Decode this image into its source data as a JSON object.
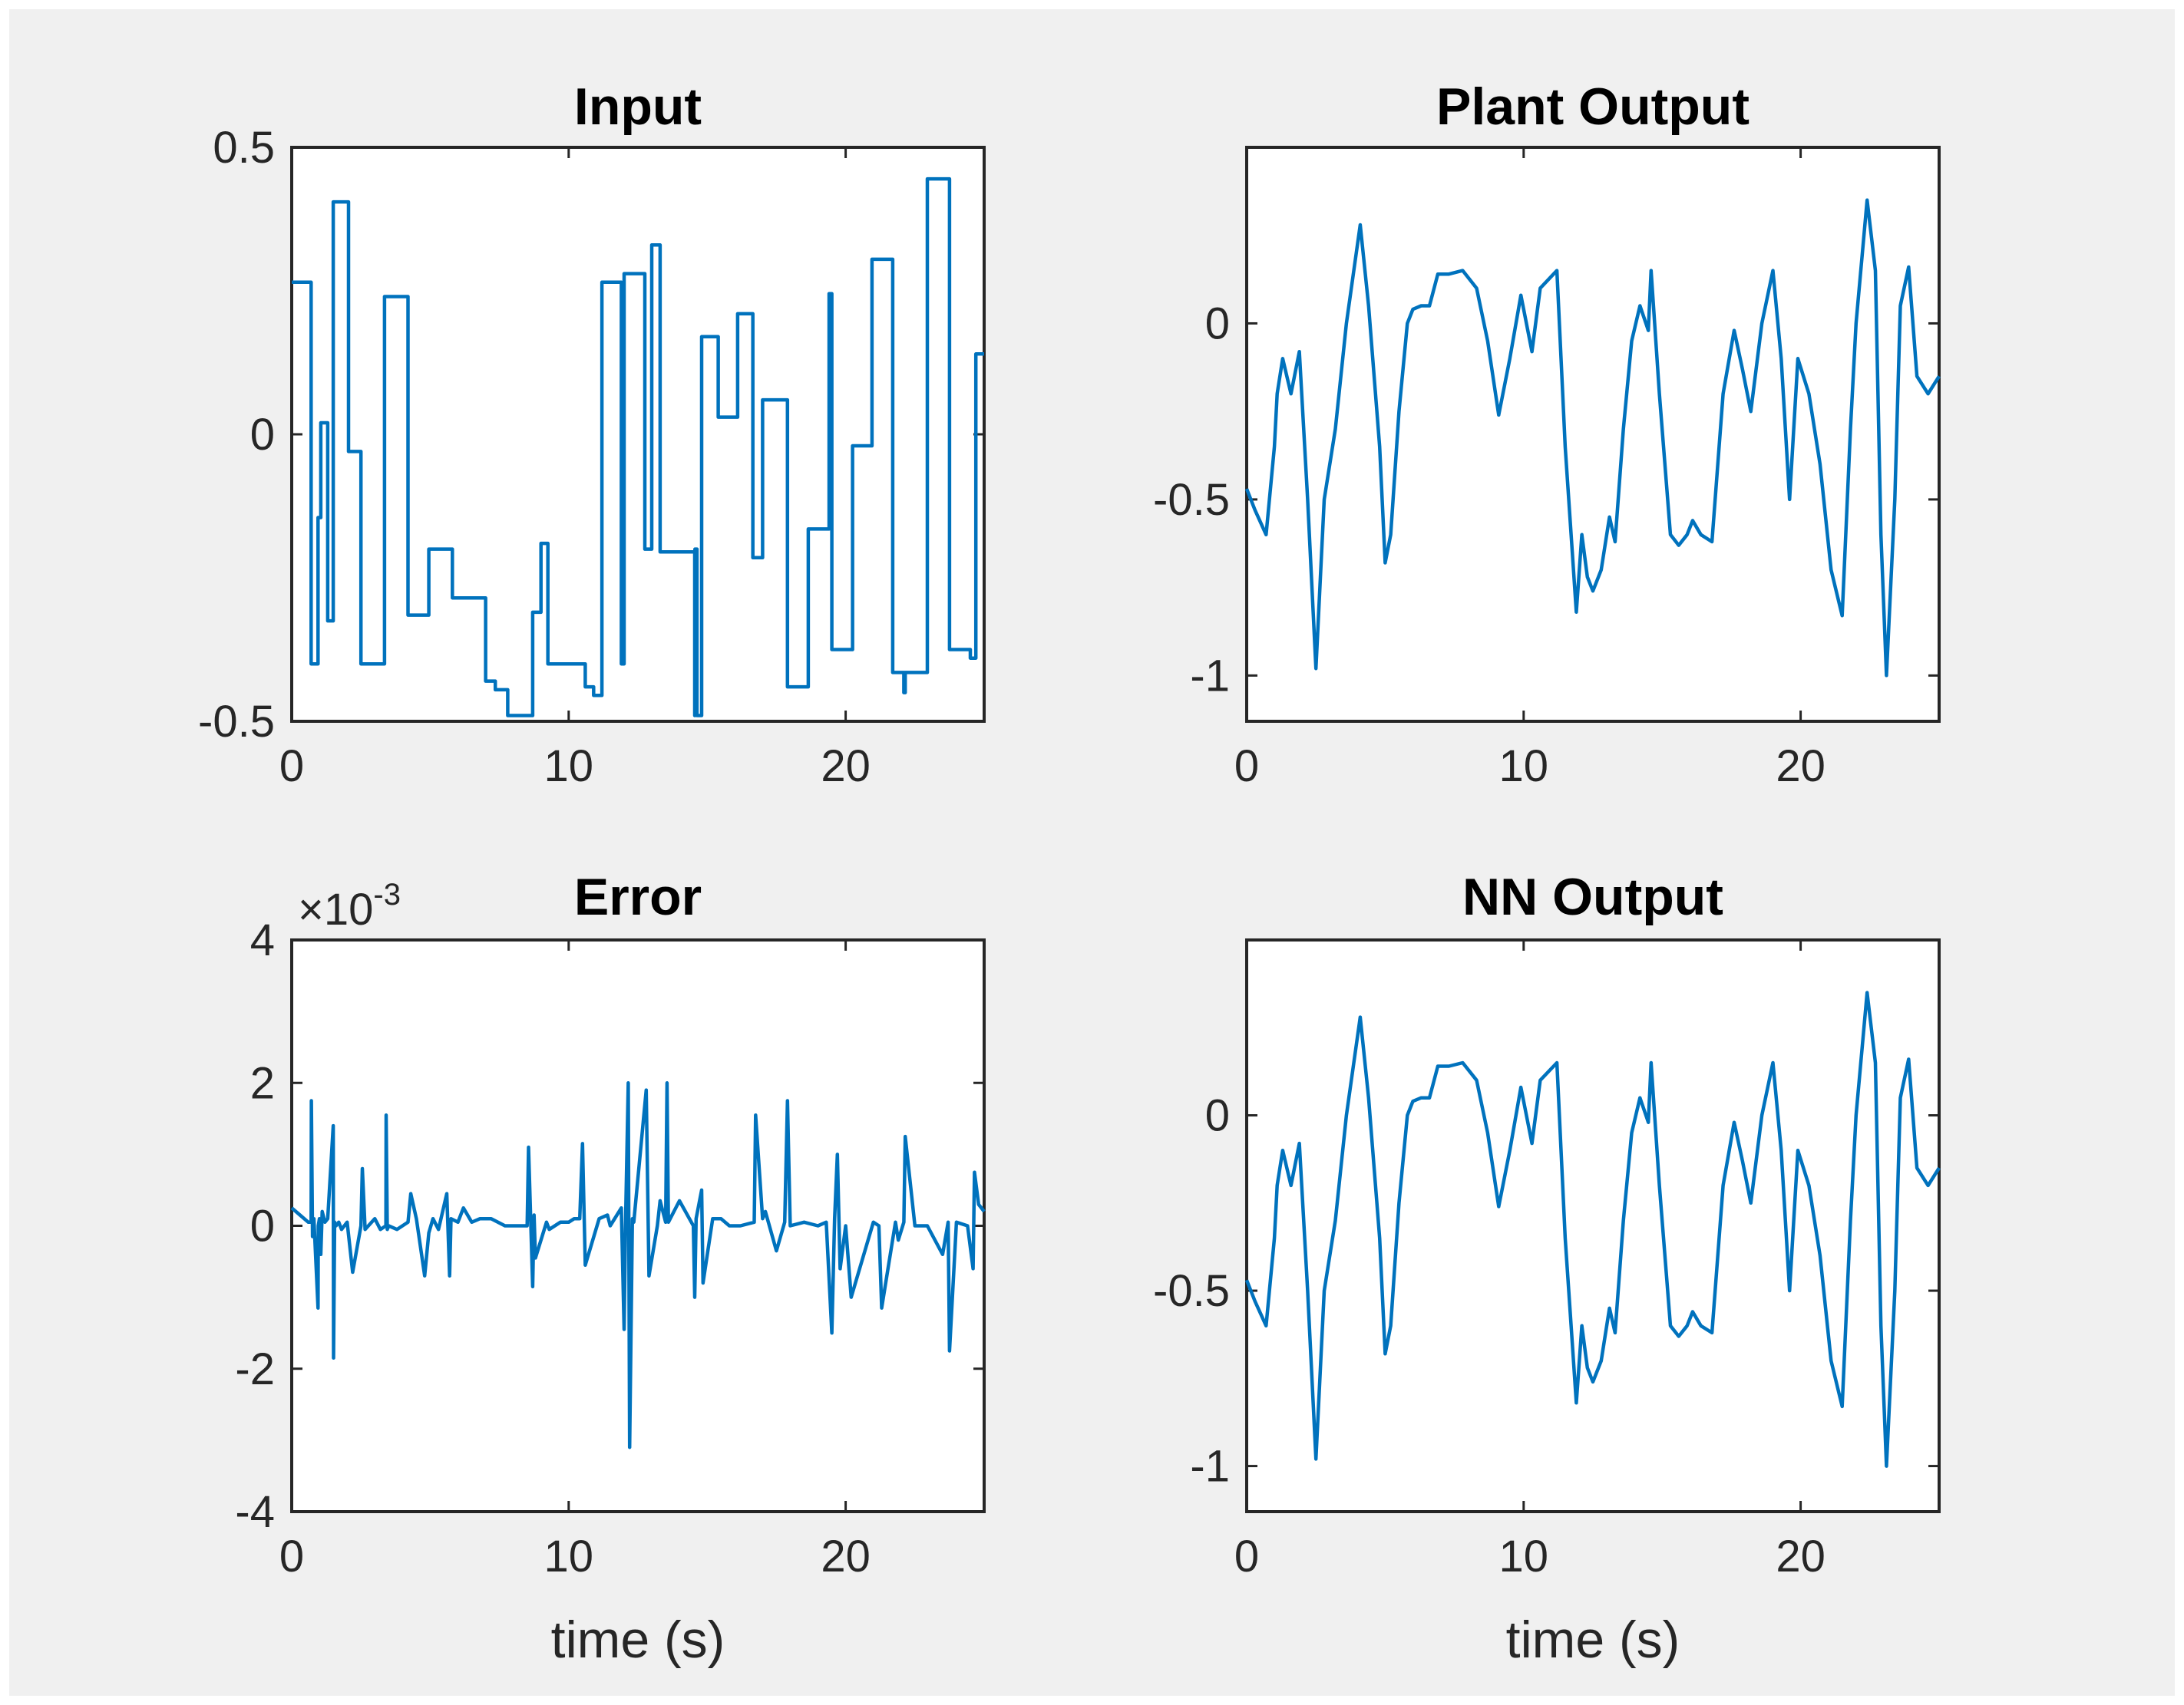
{
  "figure": {
    "background": "#f0f0f0",
    "axes_color": "#262626",
    "line_color": "#0072BD"
  },
  "chart_data": [
    {
      "id": "input",
      "type": "line",
      "step": true,
      "title": "Input",
      "xlabel": "",
      "ylabel": "",
      "xlim": [
        0,
        25
      ],
      "ylim": [
        -0.5,
        0.5
      ],
      "xticks": [
        0,
        10,
        20
      ],
      "xtick_labels": [
        "0",
        "10",
        "20"
      ],
      "yticks": [
        -0.5,
        0,
        0.5
      ],
      "ytick_labels": [
        "-0.5",
        "0",
        "0.5"
      ],
      "series": [
        {
          "name": "Input",
          "x": [
            0,
            0.7,
            0.95,
            1.05,
            1.3,
            1.5,
            2.05,
            2.5,
            3.35,
            4.2,
            4.95,
            5.8,
            6.05,
            6.4,
            7.0,
            7.35,
            7.8,
            8.55,
            8.7,
            9.0,
            9.25,
            10.05,
            10.6,
            10.9,
            11.2,
            11.9,
            12.0,
            12.2,
            12.75,
            13.0,
            13.3,
            13.75,
            14.55,
            14.56,
            14.63,
            14.7,
            14.8,
            15.4,
            16.1,
            16.65,
            17.0,
            17.9,
            18.65,
            19.4,
            19.5,
            19.7,
            20.25,
            20.95,
            21.7,
            22.1,
            22.15,
            22.95,
            23.75,
            24.5,
            24.7,
            25.0
          ],
          "y": [
            0.265,
            -0.4,
            -0.145,
            0.02,
            -0.325,
            0.405,
            -0.03,
            -0.4,
            0.24,
            -0.315,
            -0.2,
            -0.285,
            -0.285,
            -0.285,
            -0.43,
            -0.445,
            -0.49,
            -0.49,
            -0.31,
            -0.19,
            -0.4,
            -0.4,
            -0.44,
            -0.455,
            0.265,
            -0.4,
            0.28,
            0.28,
            -0.2,
            0.33,
            -0.205,
            -0.205,
            -0.49,
            -0.2,
            -0.49,
            -0.49,
            0.17,
            0.03,
            0.21,
            -0.215,
            0.06,
            -0.44,
            -0.165,
            0.245,
            -0.375,
            -0.375,
            -0.02,
            0.305,
            -0.415,
            -0.45,
            -0.415,
            0.445,
            -0.375,
            -0.39,
            0.14,
            0.14
          ]
        }
      ]
    },
    {
      "id": "plant-output",
      "type": "line",
      "title": "Plant Output",
      "xlabel": "",
      "ylabel": "",
      "xlim": [
        0,
        25
      ],
      "ylim": [
        -1.13,
        0.5
      ],
      "xticks": [
        0,
        10,
        20
      ],
      "xtick_labels": [
        "0",
        "10",
        "20"
      ],
      "yticks": [
        -1,
        -0.5,
        0
      ],
      "ytick_labels": [
        "-1",
        "-0.5",
        "0"
      ],
      "series": [
        {
          "name": "Plant Output",
          "x": [
            0,
            0.3,
            0.7,
            1.0,
            1.1,
            1.3,
            1.6,
            1.9,
            2.2,
            2.5,
            2.8,
            3.2,
            3.6,
            4.1,
            4.4,
            4.8,
            5.0,
            5.2,
            5.5,
            5.8,
            6.0,
            6.3,
            6.6,
            6.9,
            7.3,
            7.8,
            8.3,
            8.7,
            9.1,
            9.5,
            9.9,
            10.3,
            10.6,
            11.2,
            11.5,
            11.9,
            12.1,
            12.3,
            12.5,
            12.8,
            13.1,
            13.3,
            13.6,
            13.9,
            14.2,
            14.5,
            14.6,
            14.9,
            15.3,
            15.6,
            15.9,
            16.1,
            16.4,
            16.8,
            17.2,
            17.6,
            17.9,
            18.2,
            18.6,
            19.0,
            19.3,
            19.6,
            19.9,
            20.3,
            20.7,
            21.1,
            21.5,
            21.8,
            22.0,
            22.4,
            22.7,
            22.9,
            23.1,
            23.4,
            23.6,
            23.9,
            24.2,
            24.6,
            25.0
          ],
          "y": [
            -0.47,
            -0.53,
            -0.6,
            -0.35,
            -0.2,
            -0.1,
            -0.2,
            -0.08,
            -0.5,
            -0.98,
            -0.5,
            -0.3,
            0.0,
            0.28,
            0.05,
            -0.35,
            -0.68,
            -0.6,
            -0.25,
            0.0,
            0.04,
            0.05,
            0.05,
            0.14,
            0.14,
            0.15,
            0.1,
            -0.05,
            -0.26,
            -0.1,
            0.08,
            -0.08,
            0.1,
            0.15,
            -0.35,
            -0.82,
            -0.6,
            -0.72,
            -0.76,
            -0.7,
            -0.55,
            -0.62,
            -0.3,
            -0.05,
            0.05,
            -0.02,
            0.15,
            -0.2,
            -0.6,
            -0.63,
            -0.6,
            -0.56,
            -0.6,
            -0.62,
            -0.2,
            -0.02,
            -0.13,
            -0.25,
            0.0,
            0.15,
            -0.1,
            -0.5,
            -0.1,
            -0.2,
            -0.4,
            -0.7,
            -0.83,
            -0.3,
            0.0,
            0.35,
            0.15,
            -0.6,
            -1.0,
            -0.5,
            0.05,
            0.16,
            -0.15,
            -0.2,
            -0.15
          ]
        }
      ]
    },
    {
      "id": "error",
      "type": "line",
      "title": "Error",
      "xlabel": "time (s)",
      "ylabel": "",
      "exponent_label": "×10",
      "exponent": "-3",
      "xlim": [
        0,
        25
      ],
      "ylim": [
        -4,
        4
      ],
      "xticks": [
        0,
        10,
        20
      ],
      "xtick_labels": [
        "0",
        "10",
        "20"
      ],
      "yticks": [
        -4,
        -2,
        0,
        2,
        4
      ],
      "ytick_labels": [
        "-4",
        "-2",
        "0",
        "2",
        "4"
      ],
      "series": [
        {
          "name": "Error",
          "x": [
            0,
            0.3,
            0.6,
            0.7,
            0.71,
            0.75,
            0.8,
            0.95,
            0.96,
            1.0,
            1.05,
            1.1,
            1.2,
            1.3,
            1.5,
            1.51,
            1.55,
            1.6,
            1.7,
            1.8,
            2.0,
            2.2,
            2.5,
            2.55,
            2.65,
            3.0,
            3.2,
            3.4,
            3.41,
            3.45,
            3.5,
            3.8,
            4.2,
            4.3,
            4.5,
            4.8,
            4.95,
            5.1,
            5.3,
            5.6,
            5.7,
            5.75,
            6.0,
            6.2,
            6.5,
            6.8,
            7.2,
            7.7,
            8.3,
            8.5,
            8.55,
            8.7,
            8.75,
            8.8,
            9.2,
            9.3,
            9.7,
            10.0,
            10.2,
            10.4,
            10.5,
            10.6,
            11.1,
            11.4,
            11.5,
            11.9,
            12.0,
            12.05,
            12.15,
            12.2,
            12.3,
            12.35,
            12.8,
            12.9,
            13.2,
            13.3,
            13.5,
            13.55,
            13.6,
            14.0,
            14.5,
            14.55,
            14.6,
            14.8,
            14.85,
            15.2,
            15.5,
            15.8,
            16.2,
            16.7,
            16.75,
            17.0,
            17.1,
            17.5,
            17.8,
            17.9,
            18.0,
            18.5,
            19.0,
            19.3,
            19.5,
            19.6,
            19.7,
            19.8,
            20.0,
            20.2,
            21.0,
            21.2,
            21.3,
            21.8,
            21.9,
            22.1,
            22.15,
            22.5,
            22.9,
            22.95,
            23.5,
            23.7,
            23.75,
            24.0,
            24.4,
            24.6,
            24.65,
            24.8,
            25.0
          ],
          "y": [
            0.25,
            0.15,
            0.05,
            0.05,
            1.75,
            -0.15,
            0.1,
            -1.15,
            0.0,
            0.1,
            -0.4,
            0.2,
            0.05,
            0.1,
            1.4,
            -1.85,
            0.05,
            0.0,
            0.05,
            -0.05,
            0.05,
            -0.65,
            0.0,
            0.8,
            -0.05,
            0.1,
            -0.05,
            0.0,
            1.55,
            -0.05,
            0.0,
            -0.05,
            0.05,
            0.45,
            0.1,
            -0.7,
            -0.1,
            0.1,
            -0.05,
            0.45,
            -0.7,
            0.1,
            0.05,
            0.25,
            0.05,
            0.1,
            0.1,
            0.0,
            0.0,
            0.0,
            1.1,
            -0.85,
            0.15,
            -0.45,
            0.05,
            -0.05,
            0.05,
            0.05,
            0.1,
            0.1,
            1.15,
            -0.55,
            0.1,
            0.15,
            0.0,
            0.25,
            -1.45,
            0.0,
            2.0,
            -3.1,
            0.1,
            0.05,
            1.9,
            -0.7,
            0.0,
            0.35,
            0.05,
            2.0,
            0.05,
            0.35,
            0.0,
            -1.0,
            0.1,
            0.5,
            -0.8,
            0.1,
            0.1,
            0.0,
            0.0,
            0.05,
            1.55,
            0.1,
            0.2,
            -0.35,
            0.05,
            1.75,
            0.0,
            0.05,
            0.0,
            0.05,
            -1.5,
            0.1,
            1.0,
            -0.6,
            0.0,
            -1.0,
            0.05,
            0.0,
            -1.15,
            0.05,
            -0.2,
            0.05,
            1.25,
            0.0,
            0.0,
            0.0,
            -0.4,
            0.05,
            -1.75,
            0.05,
            0.0,
            -0.6,
            0.75,
            0.3,
            0.2
          ]
        }
      ]
    },
    {
      "id": "nn-output",
      "type": "line",
      "title": "NN Output",
      "xlabel": "time (s)",
      "ylabel": "",
      "xlim": [
        0,
        25
      ],
      "ylim": [
        -1.13,
        0.5
      ],
      "xticks": [
        0,
        10,
        20
      ],
      "xtick_labels": [
        "0",
        "10",
        "20"
      ],
      "yticks": [
        -1,
        -0.5,
        0
      ],
      "ytick_labels": [
        "-1",
        "-0.5",
        "0"
      ],
      "series": [
        {
          "name": "NN Output",
          "x": [
            0,
            0.3,
            0.7,
            1.0,
            1.1,
            1.3,
            1.6,
            1.9,
            2.2,
            2.5,
            2.8,
            3.2,
            3.6,
            4.1,
            4.4,
            4.8,
            5.0,
            5.2,
            5.5,
            5.8,
            6.0,
            6.3,
            6.6,
            6.9,
            7.3,
            7.8,
            8.3,
            8.7,
            9.1,
            9.5,
            9.9,
            10.3,
            10.6,
            11.2,
            11.5,
            11.9,
            12.1,
            12.3,
            12.5,
            12.8,
            13.1,
            13.3,
            13.6,
            13.9,
            14.2,
            14.5,
            14.6,
            14.9,
            15.3,
            15.6,
            15.9,
            16.1,
            16.4,
            16.8,
            17.2,
            17.6,
            17.9,
            18.2,
            18.6,
            19.0,
            19.3,
            19.6,
            19.9,
            20.3,
            20.7,
            21.1,
            21.5,
            21.8,
            22.0,
            22.4,
            22.7,
            22.9,
            23.1,
            23.4,
            23.6,
            23.9,
            24.2,
            24.6,
            25.0
          ],
          "y": [
            -0.47,
            -0.53,
            -0.6,
            -0.35,
            -0.2,
            -0.1,
            -0.2,
            -0.08,
            -0.5,
            -0.98,
            -0.5,
            -0.3,
            0.0,
            0.28,
            0.05,
            -0.35,
            -0.68,
            -0.6,
            -0.25,
            0.0,
            0.04,
            0.05,
            0.05,
            0.14,
            0.14,
            0.15,
            0.1,
            -0.05,
            -0.26,
            -0.1,
            0.08,
            -0.08,
            0.1,
            0.15,
            -0.35,
            -0.82,
            -0.6,
            -0.72,
            -0.76,
            -0.7,
            -0.55,
            -0.62,
            -0.3,
            -0.05,
            0.05,
            -0.02,
            0.15,
            -0.2,
            -0.6,
            -0.63,
            -0.6,
            -0.56,
            -0.6,
            -0.62,
            -0.2,
            -0.02,
            -0.13,
            -0.25,
            0.0,
            0.15,
            -0.1,
            -0.5,
            -0.1,
            -0.2,
            -0.4,
            -0.7,
            -0.83,
            -0.3,
            0.0,
            0.35,
            0.15,
            -0.6,
            -1.0,
            -0.5,
            0.05,
            0.16,
            -0.15,
            -0.2,
            -0.15
          ]
        }
      ]
    }
  ]
}
